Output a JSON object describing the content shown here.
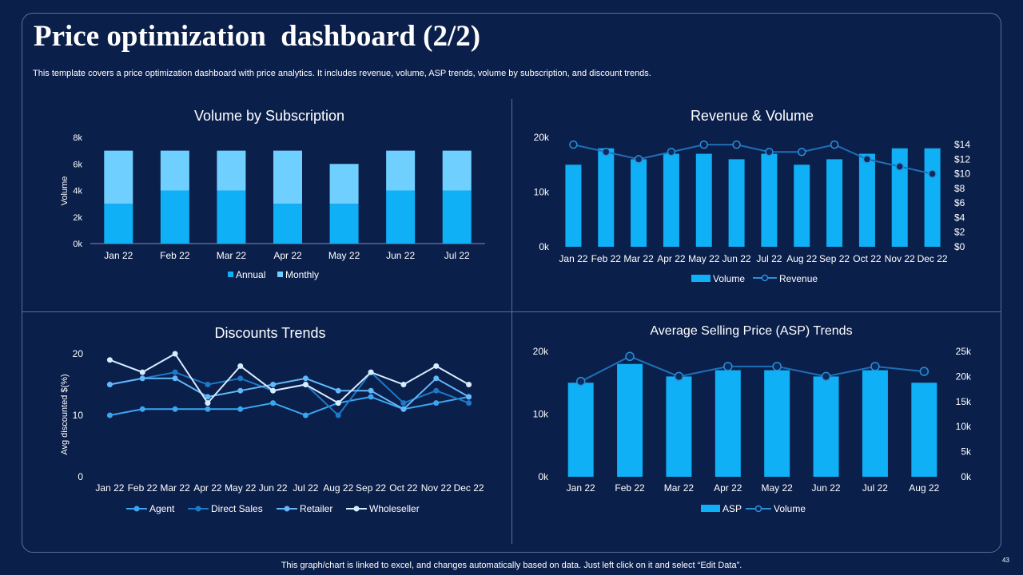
{
  "page": {
    "title": "Price optimization  dashboard (2/2)",
    "subtitle": "This template covers a price optimization dashboard with price analytics. It includes revenue, volume, ASP trends, volume by subscription, and discount trends.",
    "footer": "This graph/chart is linked to excel,  and changes automatically based on data. Just left click on it and select “Edit Data”.",
    "page_number": "43"
  },
  "colors": {
    "background": "#0b1f4b",
    "bar_primary": "#0fb0f5",
    "bar_light": "#6fd0ff",
    "line_dark": "#1a3f73",
    "line_mid": "#2a8fd9",
    "agent": "#3aa5f0",
    "direct_sales": "#1d78c8",
    "retailer": "#62b8f8",
    "wholeseller": "#d8ecff"
  },
  "chart_data": [
    {
      "id": "volume-by-subscription",
      "type": "bar",
      "stacked": true,
      "title": "Volume by Subscription",
      "ylabel": "Volume",
      "categories": [
        "Jan 22",
        "Feb 22",
        "Mar 22",
        "Apr 22",
        "May 22",
        "Jun 22",
        "Jul 22"
      ],
      "series": [
        {
          "name": "Annual",
          "values": [
            3000,
            4000,
            4000,
            3000,
            3000,
            4000,
            4000
          ]
        },
        {
          "name": "Monthly",
          "values": [
            4000,
            3000,
            3000,
            4000,
            3000,
            3000,
            3000
          ]
        }
      ],
      "ylim": [
        0,
        8000
      ],
      "yticks": [
        "0k",
        "2k",
        "4k",
        "6k",
        "8k"
      ],
      "legend": [
        "Annual",
        "Monthly"
      ]
    },
    {
      "id": "revenue-volume",
      "type": "bar",
      "title": "Revenue & Volume",
      "categories": [
        "Jan 22",
        "Feb 22",
        "Mar 22",
        "Apr 22",
        "May 22",
        "Jun 22",
        "Jul 22",
        "Aug 22",
        "Sep 22",
        "Oct 22",
        "Nov 22",
        "Dec 22"
      ],
      "bars": {
        "name": "Volume",
        "values": [
          15000,
          18000,
          16000,
          17000,
          17000,
          16000,
          17000,
          15000,
          16000,
          17000,
          18000,
          18000
        ]
      },
      "line": {
        "name": "Revenue",
        "values": [
          14,
          13,
          12,
          13,
          14,
          14,
          13,
          13,
          14,
          12,
          11,
          10
        ]
      },
      "ylim": [
        0,
        20000
      ],
      "yticks": [
        "0k",
        "10k",
        "20k"
      ],
      "y2lim": [
        0,
        15
      ],
      "y2ticks": [
        "$0",
        "$2",
        "$4",
        "$6",
        "$8",
        "$10",
        "$12",
        "$14"
      ],
      "legend": [
        "Volume",
        "Revenue"
      ]
    },
    {
      "id": "discounts-trends",
      "type": "line",
      "title": "Discounts Trends",
      "ylabel": "Avg discounted $(%)",
      "categories": [
        "Jan 22",
        "Feb 22",
        "Mar 22",
        "Apr 22",
        "May 22",
        "Jun 22",
        "Jul 22",
        "Aug 22",
        "Sep 22",
        "Oct 22",
        "Nov 22",
        "Dec 22"
      ],
      "series": [
        {
          "name": "Agent",
          "values": [
            10,
            11,
            11,
            11,
            11,
            12,
            10,
            12,
            13,
            11,
            12,
            13
          ]
        },
        {
          "name": "Direct Sales",
          "values": [
            15,
            16,
            17,
            15,
            16,
            14,
            15,
            10,
            17,
            12,
            14,
            12
          ]
        },
        {
          "name": "Retailer",
          "values": [
            15,
            16,
            16,
            13,
            14,
            15,
            16,
            14,
            14,
            11,
            16,
            13
          ]
        },
        {
          "name": "Wholeseller",
          "values": [
            19,
            17,
            20,
            12,
            18,
            14,
            15,
            12,
            17,
            15,
            18,
            15
          ]
        }
      ],
      "ylim": [
        0,
        20
      ],
      "yticks": [
        "0",
        "10",
        "20"
      ],
      "legend": [
        "Agent",
        "Direct Sales",
        "Retailer",
        "Wholeseller"
      ]
    },
    {
      "id": "asp-trends",
      "type": "bar",
      "title": "Average Selling Price (ASP) Trends",
      "categories": [
        "Jan 22",
        "Feb 22",
        "Mar 22",
        "Apr 22",
        "May 22",
        "Jun 22",
        "Jul 22",
        "Aug 22"
      ],
      "bars": {
        "name": "ASP",
        "values": [
          15000,
          18000,
          16000,
          17000,
          17000,
          16000,
          17000,
          15000
        ]
      },
      "line": {
        "name": "Volume",
        "values": [
          19000,
          24000,
          20000,
          22000,
          22000,
          20000,
          22000,
          21000
        ]
      },
      "ylim": [
        0,
        20000
      ],
      "yticks": [
        "0k",
        "10k",
        "20k"
      ],
      "y2lim": [
        0,
        25000
      ],
      "y2ticks": [
        "0k",
        "5k",
        "10k",
        "15k",
        "20k",
        "25k"
      ],
      "legend": [
        "ASP",
        "Volume"
      ]
    }
  ]
}
